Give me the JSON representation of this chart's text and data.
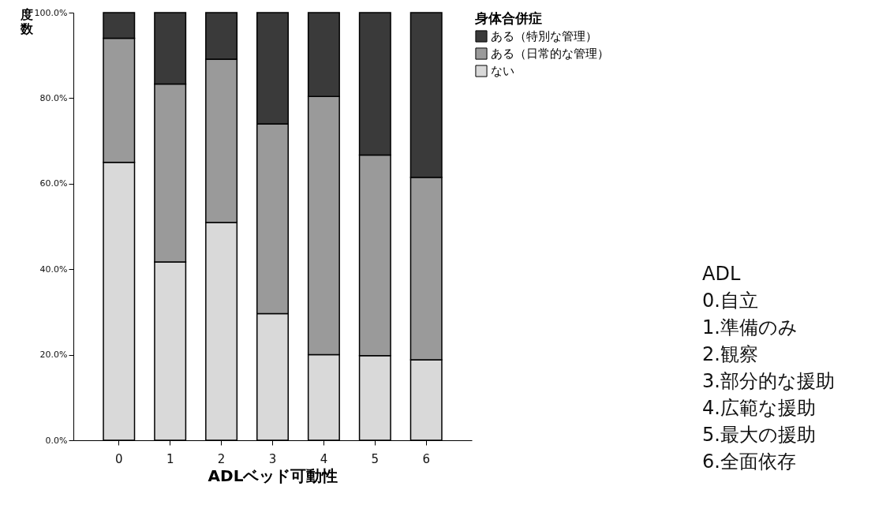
{
  "chart_data": {
    "type": "bar",
    "stacked": true,
    "xlabel": "ADLベッド可動性",
    "ylabel": "度数",
    "legend_title": "身体合併症",
    "legend": "top right",
    "grid": false,
    "categories": [
      "0",
      "1",
      "2",
      "3",
      "4",
      "5",
      "6"
    ],
    "ylim": [
      0,
      100
    ],
    "yticks": [
      {
        "value": 0,
        "label": "0.0%"
      },
      {
        "value": 20,
        "label": "20.0%"
      },
      {
        "value": 40,
        "label": "40.0%"
      },
      {
        "value": 60,
        "label": "60.0%"
      },
      {
        "value": 80,
        "label": "80.0%"
      },
      {
        "value": 100,
        "label": "100.0%"
      }
    ],
    "series": [
      {
        "name": "ない",
        "color": "#d9d9d9",
        "values": [
          65,
          41.7,
          50.9,
          29.6,
          20,
          19.8,
          18.8
        ]
      },
      {
        "name": "ある（日常的な管理）",
        "color": "#9a9a9a",
        "values": [
          29,
          41.6,
          38.2,
          44.4,
          60.4,
          46.9,
          42.7
        ]
      },
      {
        "name": "ある（特別な管理）",
        "color": "#3a3a3a",
        "values": [
          6,
          16.7,
          10.9,
          26,
          19.6,
          33.3,
          38.5
        ]
      }
    ],
    "annotations": [
      "ADL",
      "0.自立",
      "1.準備のみ",
      "2.観察",
      "3.部分的な援助",
      "4.広範な援助",
      "5.最大の援助",
      "6.全面依存"
    ]
  }
}
